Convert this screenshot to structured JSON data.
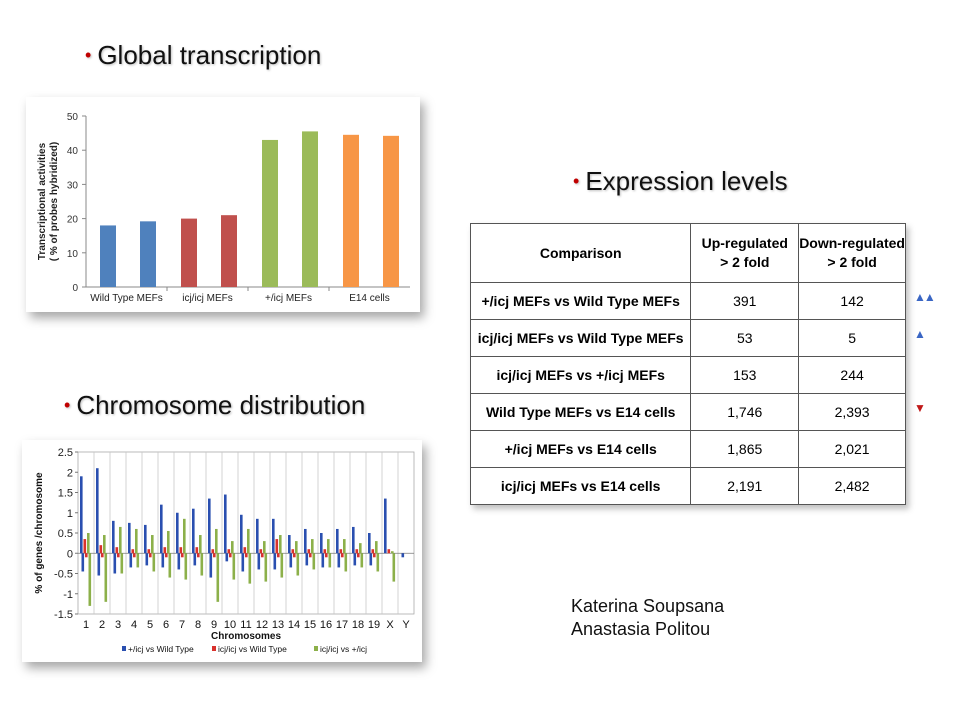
{
  "headings": {
    "global": "Global transcription",
    "expression": "Expression levels",
    "chromosome": "Chromosome distribution"
  },
  "colors": {
    "bullet": "#c00000",
    "blue": "#3a6fc0",
    "red": "#c0504d",
    "green": "#8db34a",
    "orange": "#f39c3e",
    "arrow_up": "#3a66c4",
    "arrow_down": "#c01818"
  },
  "chart_data": [
    {
      "type": "bar",
      "ylabel": "Transcriptional activities ( % of probes hybridized)",
      "ylim": [
        0,
        50
      ],
      "yticks": [
        "0",
        "10",
        "20",
        "30",
        "40",
        "50"
      ],
      "groups": [
        {
          "label": "Wild Type MEFs",
          "values": [
            18,
            19.2
          ],
          "color": "#4f81bd"
        },
        {
          "label": "icj/icj MEFs",
          "values": [
            20,
            21
          ],
          "color": "#c0504d"
        },
        {
          "label": "+/icj MEFs",
          "values": [
            43,
            45.5
          ],
          "color": "#9bbb59"
        },
        {
          "label": "E14 cells",
          "values": [
            44.5,
            44.2
          ],
          "color": "#f79646"
        }
      ],
      "grid": false
    },
    {
      "type": "bar",
      "xlabel": "Chromosomes",
      "ylabel": "% of genes /chromosome",
      "ylim": [
        -1.5,
        2.5
      ],
      "yticks": [
        "-1.5",
        "-1",
        "-0.5",
        "0",
        "0.5",
        "1",
        "1.5",
        "2",
        "2.5"
      ],
      "categories": [
        "1",
        "2",
        "3",
        "4",
        "5",
        "6",
        "7",
        "8",
        "9",
        "10",
        "11",
        "12",
        "13",
        "14",
        "15",
        "16",
        "17",
        "18",
        "19",
        "X",
        "Y"
      ],
      "legend_position": "bottom",
      "series": [
        {
          "name": "+/icj vs Wild Type",
          "color": "#2a4fb0",
          "pos": [
            1.9,
            2.1,
            0.8,
            0.75,
            0.7,
            1.2,
            1.0,
            1.1,
            1.35,
            1.45,
            0.95,
            0.85,
            0.85,
            0.45,
            0.6,
            0.5,
            0.6,
            0.65,
            0.5,
            1.35,
            0
          ],
          "neg": [
            -0.45,
            -0.55,
            -0.5,
            -0.35,
            -0.3,
            -0.35,
            -0.4,
            -0.3,
            -0.6,
            -0.2,
            -0.45,
            -0.4,
            -0.4,
            -0.35,
            -0.3,
            -0.35,
            -0.35,
            -0.3,
            -0.3,
            0,
            -0.1
          ]
        },
        {
          "name": "icj/icj vs Wild Type",
          "color": "#d9322d",
          "pos": [
            0.35,
            0.2,
            0.15,
            0.1,
            0.1,
            0.15,
            0.15,
            0.15,
            0.1,
            0.1,
            0.15,
            0.1,
            0.35,
            0.1,
            0.1,
            0.1,
            0.1,
            0.1,
            0.1,
            0.1,
            0
          ],
          "neg": [
            -0.1,
            -0.1,
            -0.1,
            -0.1,
            -0.1,
            -0.1,
            -0.1,
            -0.1,
            -0.1,
            -0.1,
            -0.1,
            -0.1,
            -0.1,
            -0.1,
            -0.1,
            -0.1,
            -0.1,
            -0.1,
            -0.1,
            0,
            0
          ]
        },
        {
          "name": "icj/icj vs +/icj",
          "color": "#8cb04a",
          "pos": [
            0.5,
            0.45,
            0.65,
            0.6,
            0.45,
            0.55,
            0.85,
            0.45,
            0.6,
            0.3,
            0.6,
            0.3,
            0.45,
            0.3,
            0.35,
            0.35,
            0.35,
            0.25,
            0.3,
            0.05,
            0
          ],
          "neg": [
            -1.3,
            -1.2,
            -0.5,
            -0.35,
            -0.45,
            -0.6,
            -0.65,
            -0.55,
            -1.2,
            -0.65,
            -0.75,
            -0.7,
            -0.6,
            -0.55,
            -0.4,
            -0.35,
            -0.45,
            -0.35,
            -0.45,
            -0.7,
            0
          ]
        }
      ],
      "grid": true
    }
  ],
  "table": {
    "headers": [
      "Comparison",
      "Up-regulated\n> 2 fold",
      "Down-regulated\n> 2 fold"
    ],
    "rows": [
      {
        "comparison": "+/icj MEFs vs Wild Type MEFs",
        "up": "391",
        "down": "142",
        "arrow": "up-up"
      },
      {
        "comparison": "icj/icj MEFs vs Wild Type MEFs",
        "up": "53",
        "down": "5",
        "arrow": "up"
      },
      {
        "comparison": "icj/icj MEFs vs +/icj MEFs",
        "up": "153",
        "down": "244",
        "arrow": ""
      },
      {
        "comparison": "Wild Type MEFs vs E14 cells",
        "up": "1,746",
        "down": "2,393",
        "arrow": "down"
      },
      {
        "comparison": "+/icj MEFs vs E14 cells",
        "up": "1,865",
        "down": "2,021",
        "arrow": ""
      },
      {
        "comparison": "icj/icj MEFs vs E14 cells",
        "up": "2,191",
        "down": "2,482",
        "arrow": ""
      }
    ]
  },
  "authors": [
    "Katerina Soupsana",
    "Anastasia Politou"
  ]
}
